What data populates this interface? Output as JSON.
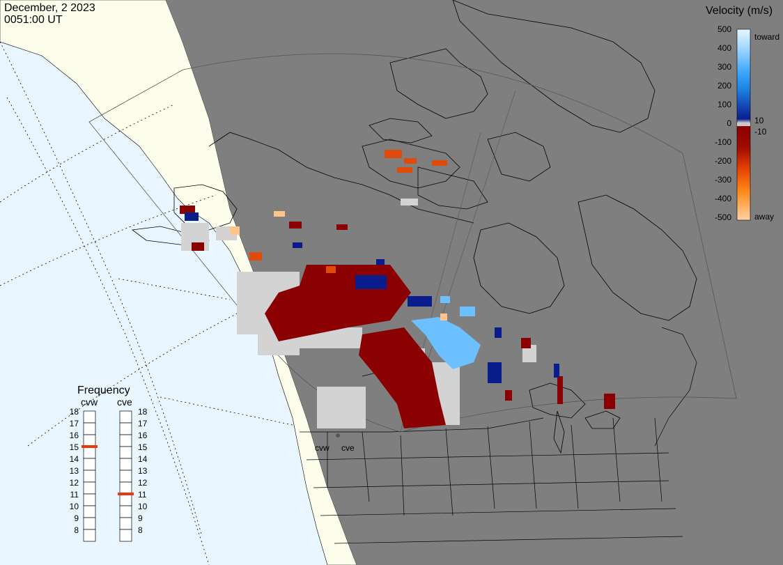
{
  "header": {
    "date": "December, 2 2023",
    "time": "0051:00 UT"
  },
  "colorbar": {
    "title": "Velocity (m/s)",
    "ticks": [
      "500",
      "400",
      "300",
      "200",
      "100",
      "0",
      "-100",
      "-200",
      "-300",
      "-400",
      "-500"
    ],
    "label_toward": "toward",
    "label_away": "away",
    "label_pos_cut": "10",
    "label_neg_cut": "-10",
    "stops": [
      "#e8f6ff",
      "#9fd8ff",
      "#41a9ff",
      "#1b7fe0",
      "#1449b6",
      "#0a1d8c",
      "#c8c8c8",
      "#8c0000",
      "#b01400",
      "#e03c00",
      "#ff8a1a",
      "#ffd2a8"
    ]
  },
  "frequency": {
    "title": "Frequency",
    "radars": [
      {
        "name": "cvw",
        "selected": 15
      },
      {
        "name": "cve",
        "selected": 11
      }
    ],
    "levels": [
      "18",
      "17",
      "16",
      "15",
      "14",
      "13",
      "12",
      "11",
      "10",
      "9",
      "8"
    ]
  },
  "radar_labels": {
    "cvw": "cvw",
    "cve": "cve"
  },
  "colors": {
    "land_night": "#7f7f7f",
    "ocean_day": "#eaf6ff",
    "land_day": "#fdfdec",
    "scatter_neg_strong": "#8b0000",
    "scatter_ground": "#d3d3d3",
    "scatter_pos": "#0a1d8c",
    "scatter_pos_light": "#74c4ff",
    "marker": "#e8380c"
  }
}
